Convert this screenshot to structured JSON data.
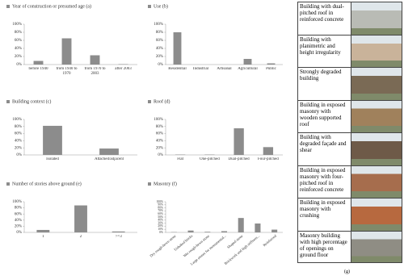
{
  "chart_data": [
    {
      "type": "bar",
      "title": "Year of construction or presumed age (a)",
      "categories": [
        "before 1940",
        "from 1940 to 1970",
        "from 1970 to 2003",
        "after 2003"
      ],
      "values": [
        9,
        65,
        23,
        1
      ],
      "color": "#8c8c8c",
      "ylim": [
        0,
        100
      ],
      "yticks": [
        {
          "value": 0,
          "label": "0%"
        },
        {
          "value": 20,
          "label": "20%"
        },
        {
          "value": 40,
          "label": "40%"
        },
        {
          "value": 60,
          "label": "60%"
        },
        {
          "value": 80,
          "label": "80%"
        },
        {
          "value": 100,
          "label": "100%"
        }
      ]
    },
    {
      "type": "bar",
      "title": "Use (b)",
      "categories": [
        "Residential",
        "Industrial",
        "Artisanal",
        "Agricultural",
        "Public"
      ],
      "values": [
        80,
        0,
        0,
        14,
        3
      ],
      "color": "#8c8c8c",
      "ylim": [
        0,
        100
      ],
      "yticks": [
        {
          "value": 0,
          "label": "0%"
        },
        {
          "value": 20,
          "label": "20%"
        },
        {
          "value": 40,
          "label": "40%"
        },
        {
          "value": 60,
          "label": "60%"
        },
        {
          "value": 80,
          "label": "80%"
        },
        {
          "value": 100,
          "label": "100%"
        }
      ]
    },
    {
      "type": "bar",
      "title": "Building context (c)",
      "categories": [
        "Isolated",
        "Attached/adjacent"
      ],
      "values": [
        82,
        18
      ],
      "color": "#8c8c8c",
      "ylim": [
        0,
        100
      ],
      "yticks": [
        {
          "value": 0,
          "label": "0%"
        },
        {
          "value": 20,
          "label": "20%"
        },
        {
          "value": 40,
          "label": "40%"
        },
        {
          "value": 60,
          "label": "60%"
        },
        {
          "value": 80,
          "label": "80%"
        },
        {
          "value": 100,
          "label": "100%"
        }
      ]
    },
    {
      "type": "bar",
      "title": "Roof (d)",
      "categories": [
        "Flat",
        "One-pitched",
        "Dual-pitched",
        "Four-pitched"
      ],
      "values": [
        1,
        1,
        75,
        22
      ],
      "color": "#8c8c8c",
      "ylim": [
        0,
        100
      ],
      "yticks": [
        {
          "value": 0,
          "label": "0%"
        },
        {
          "value": 20,
          "label": "20%"
        },
        {
          "value": 40,
          "label": "40%"
        },
        {
          "value": 60,
          "label": "60%"
        },
        {
          "value": 80,
          "label": "80%"
        },
        {
          "value": 100,
          "label": "100%"
        }
      ]
    },
    {
      "type": "bar",
      "title": "Number of stories above ground (e)",
      "categories": [
        "1",
        "2",
        ">=3"
      ],
      "values": [
        8,
        88,
        3
      ],
      "color": "#8c8c8c",
      "ylim": [
        0,
        100
      ],
      "yticks": [
        {
          "value": 0,
          "label": "0%"
        },
        {
          "value": 20,
          "label": "20%"
        },
        {
          "value": 40,
          "label": "40%"
        },
        {
          "value": 60,
          "label": "60%"
        },
        {
          "value": 80,
          "label": "80%"
        },
        {
          "value": 100,
          "label": "100%"
        }
      ]
    },
    {
      "type": "bar",
      "title": "Masonry (f)",
      "categories": [
        "Dry rough-hewn stone",
        "Unbaked bricks",
        "Wet rough-hewn stone",
        "Large stones for monumental...",
        "Shaped stone",
        "Brickwork and high stiffness...",
        "Reinforced"
      ],
      "values": [
        1,
        6,
        2,
        4,
        47,
        29,
        9
      ],
      "color": "#8c8c8c",
      "ylim": [
        0,
        100
      ],
      "rotate_labels": true,
      "yticks": [
        {
          "value": 0,
          "label": "0%"
        },
        {
          "value": 10,
          "label": "10%"
        },
        {
          "value": 20,
          "label": "20%"
        },
        {
          "value": 30,
          "label": "30%"
        },
        {
          "value": 40,
          "label": "40%"
        },
        {
          "value": 50,
          "label": "50%"
        },
        {
          "value": 60,
          "label": "60%"
        },
        {
          "value": 70,
          "label": "70%"
        },
        {
          "value": 80,
          "label": "80%"
        },
        {
          "value": 90,
          "label": "90%"
        },
        {
          "value": 100,
          "label": "100%"
        }
      ]
    }
  ],
  "panel_g": {
    "captions": [
      "Building with dual-pitched roof in reinforced concrete",
      "Building with planimetric and height irregularity",
      "Strongly degraded building",
      "Building in exposed masonry with wooden supported roof",
      "Building with degraded façade and shear",
      "Building in exposed masonry with four-pitched roof in reinforced concrete",
      "Building in exposed masonry with crushing",
      "Masonry building with high percentage of openings on ground floor"
    ],
    "label": "(g)"
  }
}
